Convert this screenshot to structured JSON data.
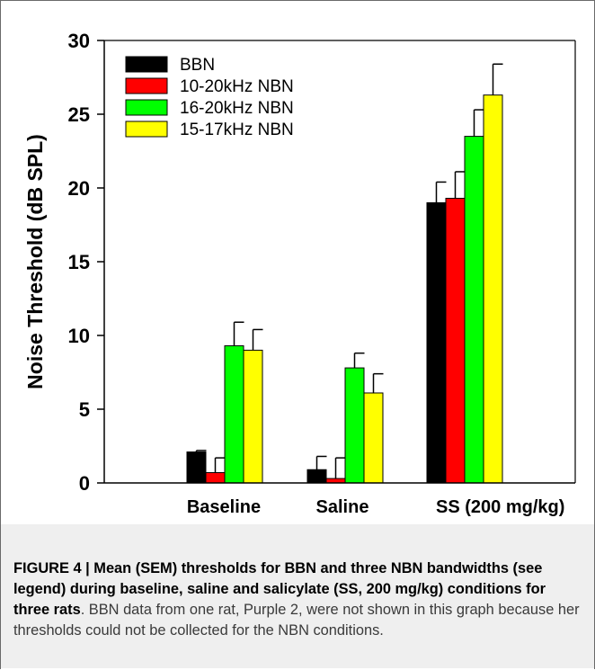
{
  "chart_data": {
    "type": "bar",
    "title": "",
    "xlabel": "",
    "ylabel": "Noise Threshold (dB SPL)",
    "ylim": [
      0,
      30
    ],
    "yticks": [
      0,
      5,
      10,
      15,
      20,
      25,
      30
    ],
    "categories": [
      "Baseline",
      "Saline",
      "SS (200 mg/kg)"
    ],
    "legend_position": "top-left",
    "grid": false,
    "series": [
      {
        "name": "BBN",
        "color": "#000000",
        "values": [
          2.1,
          0.9,
          19.0
        ],
        "errors": [
          0.1,
          0.9,
          1.4
        ]
      },
      {
        "name": "10-20kHz NBN",
        "color": "#ff0000",
        "values": [
          0.7,
          0.3,
          19.3
        ],
        "errors": [
          1.0,
          1.4,
          1.8
        ]
      },
      {
        "name": "16-20kHz NBN",
        "color": "#00ff00",
        "values": [
          9.3,
          7.8,
          23.5
        ],
        "errors": [
          1.6,
          1.0,
          1.8
        ]
      },
      {
        "name": "15-17kHz NBN",
        "color": "#ffff00",
        "values": [
          9.0,
          6.1,
          26.3
        ],
        "errors": [
          1.4,
          1.3,
          2.1
        ]
      }
    ]
  },
  "caption": {
    "label": "FIGURE 4 | Mean (SEM) thresholds for BBN and three NBN bandwidths (see legend) during baseline, saline and salicylate (SS, 200 mg/kg) conditions for three rats",
    "text": ". BBN data from one rat, Purple 2, were not shown in this graph because her thresholds could not be collected for the NBN conditions."
  }
}
